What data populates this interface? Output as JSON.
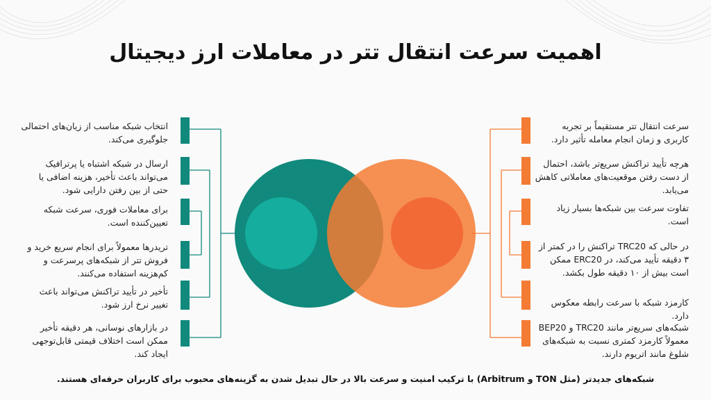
{
  "title": "اهمیت سرعت انتقال تتر در معاملات ارز دیجیتال",
  "colors": {
    "teal": "#11897c",
    "teal_light": "#14b3a3",
    "orange": "#f47b34",
    "orange_dark": "#f0683a"
  },
  "left_items": [
    "انتخاب شبکه مناسب از زیان‌های احتمالی جلوگیری می‌کند.",
    "ارسال در شبکه اشتباه یا پرترافیک می‌تواند باعث تأخیر، هزینه اضافی یا حتی از بین رفتن دارایی شود.",
    "برای معاملات فوری، سرعت شبکه تعیین‌کننده است.",
    "تریدرها معمولاً برای انجام سریع خرید و فروش تتر از شبکه‌های پرسرعت و کم‌هزینه استفاده می‌کنند.",
    "تأخیر در تأیید تراکنش می‌تواند باعث تغییر نرخ ارز شود.",
    "در بازارهای نوسانی، هر دقیقه تأخیر ممکن است اختلاف قیمتی قابل‌توجهی ایجاد کند."
  ],
  "right_items": [
    "سرعت انتقال تتر مستقیماً بر تجربه کاربری و زمان انجام معامله تأثیر دارد.",
    "هرچه تأیید تراکنش سریع‌تر باشد، احتمال از دست رفتن موقعیت‌های معاملاتی کاهش می‌یابد.",
    "تفاوت سرعت بین شبکه‌ها بسیار زیاد است.",
    "در حالی که TRC20 تراکنش را در کمتر از ۳ دقیقه تأیید می‌کند، در ERC20 ممکن است بیش از ۱۰ دقیقه طول بکشد.",
    "کارمزد شبکه با سرعت رابطه معکوس دارد.",
    "شبکه‌های سریع‌تر مانند TRC20 و BEP20 معمولاً کارمزد کمتری نسبت به شبکه‌های شلوغ مانند اتریوم دارند."
  ],
  "footer": "شبکه‌های جدیدتر (مثل TON و Arbitrum) با ترکیب امنیت و سرعت بالا در حال تبدیل شدن به گزینه‌های محبوب برای کاربران حرفه‌ای هستند."
}
